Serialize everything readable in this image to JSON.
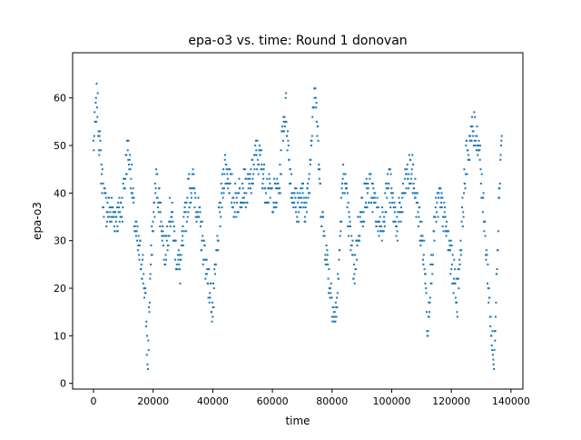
{
  "chart_data": {
    "type": "scatter",
    "title": "epa-o3 vs. time: Round 1 donovan",
    "xlabel": "time",
    "ylabel": "epa-o3",
    "xlim": [
      -7000,
      144000
    ],
    "ylim": [
      -1.2,
      69.5
    ],
    "xticks": [
      0,
      20000,
      40000,
      60000,
      80000,
      100000,
      120000,
      140000
    ],
    "xtick_labels": [
      "0",
      "20000",
      "40000",
      "60000",
      "80000",
      "100000",
      "120000",
      "140000"
    ],
    "yticks": [
      0,
      10,
      20,
      30,
      40,
      50,
      60
    ],
    "ytick_labels": [
      "0",
      "10",
      "20",
      "30",
      "40",
      "50",
      "60"
    ],
    "grid": false,
    "legend": "none",
    "marker_color": "#1f77b4",
    "series": [
      {
        "trend": [
          [
            0,
            50
          ],
          [
            600,
            55
          ],
          [
            1200,
            60
          ],
          [
            1800,
            53
          ],
          [
            2500,
            46
          ],
          [
            3200,
            40
          ],
          [
            4200,
            37
          ],
          [
            6000,
            36
          ],
          [
            8000,
            35
          ],
          [
            9500,
            37
          ],
          [
            10500,
            43
          ],
          [
            11500,
            50
          ],
          [
            12500,
            45
          ],
          [
            13500,
            36
          ],
          [
            14500,
            30
          ],
          [
            15500,
            27
          ],
          [
            16500,
            25
          ],
          [
            17500,
            16
          ],
          [
            18200,
            4
          ],
          [
            19000,
            22
          ],
          [
            20000,
            34
          ],
          [
            21000,
            42
          ],
          [
            22000,
            39
          ],
          [
            23000,
            33
          ],
          [
            24000,
            27
          ],
          [
            25000,
            33
          ],
          [
            26000,
            37
          ],
          [
            27500,
            28
          ],
          [
            29000,
            24
          ],
          [
            30500,
            33
          ],
          [
            32000,
            41
          ],
          [
            33500,
            42
          ],
          [
            35000,
            36
          ],
          [
            36500,
            30
          ],
          [
            38000,
            24
          ],
          [
            39000,
            20
          ],
          [
            40000,
            15
          ],
          [
            41000,
            24
          ],
          [
            42000,
            33
          ],
          [
            43000,
            39
          ],
          [
            44000,
            46
          ],
          [
            45500,
            43
          ],
          [
            47000,
            38
          ],
          [
            48500,
            39
          ],
          [
            50000,
            42
          ],
          [
            51500,
            40
          ],
          [
            53000,
            43
          ],
          [
            54500,
            48
          ],
          [
            56000,
            47
          ],
          [
            57500,
            42
          ],
          [
            59000,
            40
          ],
          [
            61000,
            39
          ],
          [
            62500,
            42
          ],
          [
            63500,
            54
          ],
          [
            64500,
            58
          ],
          [
            65500,
            48
          ],
          [
            66500,
            41
          ],
          [
            68000,
            37
          ],
          [
            70000,
            39
          ],
          [
            71500,
            37
          ],
          [
            72500,
            44
          ],
          [
            73500,
            58
          ],
          [
            74300,
            64
          ],
          [
            75000,
            54
          ],
          [
            76000,
            40
          ],
          [
            77000,
            33
          ],
          [
            78000,
            28
          ],
          [
            79000,
            22
          ],
          [
            80000,
            18
          ],
          [
            81000,
            13
          ],
          [
            82000,
            20
          ],
          [
            83000,
            36
          ],
          [
            84000,
            45
          ],
          [
            85000,
            37
          ],
          [
            86500,
            29
          ],
          [
            87500,
            23
          ],
          [
            88500,
            31
          ],
          [
            90000,
            36
          ],
          [
            91500,
            40
          ],
          [
            93000,
            41
          ],
          [
            94500,
            37
          ],
          [
            96000,
            33
          ],
          [
            97500,
            36
          ],
          [
            99000,
            43
          ],
          [
            100500,
            37
          ],
          [
            102000,
            33
          ],
          [
            103500,
            38
          ],
          [
            105000,
            43
          ],
          [
            106500,
            45
          ],
          [
            108000,
            40
          ],
          [
            109500,
            33
          ],
          [
            111000,
            26
          ],
          [
            112000,
            12
          ],
          [
            113000,
            22
          ],
          [
            114500,
            34
          ],
          [
            116000,
            39
          ],
          [
            117500,
            35
          ],
          [
            119000,
            30
          ],
          [
            120500,
            24
          ],
          [
            122000,
            18
          ],
          [
            123000,
            28
          ],
          [
            124000,
            38
          ],
          [
            125000,
            47
          ],
          [
            126500,
            52
          ],
          [
            128000,
            53
          ],
          [
            129500,
            50
          ],
          [
            130500,
            38
          ],
          [
            131500,
            30
          ],
          [
            132500,
            20
          ],
          [
            133500,
            10
          ],
          [
            134300,
            3
          ],
          [
            135000,
            20
          ],
          [
            136000,
            40
          ],
          [
            137000,
            55
          ]
        ]
      }
    ]
  }
}
